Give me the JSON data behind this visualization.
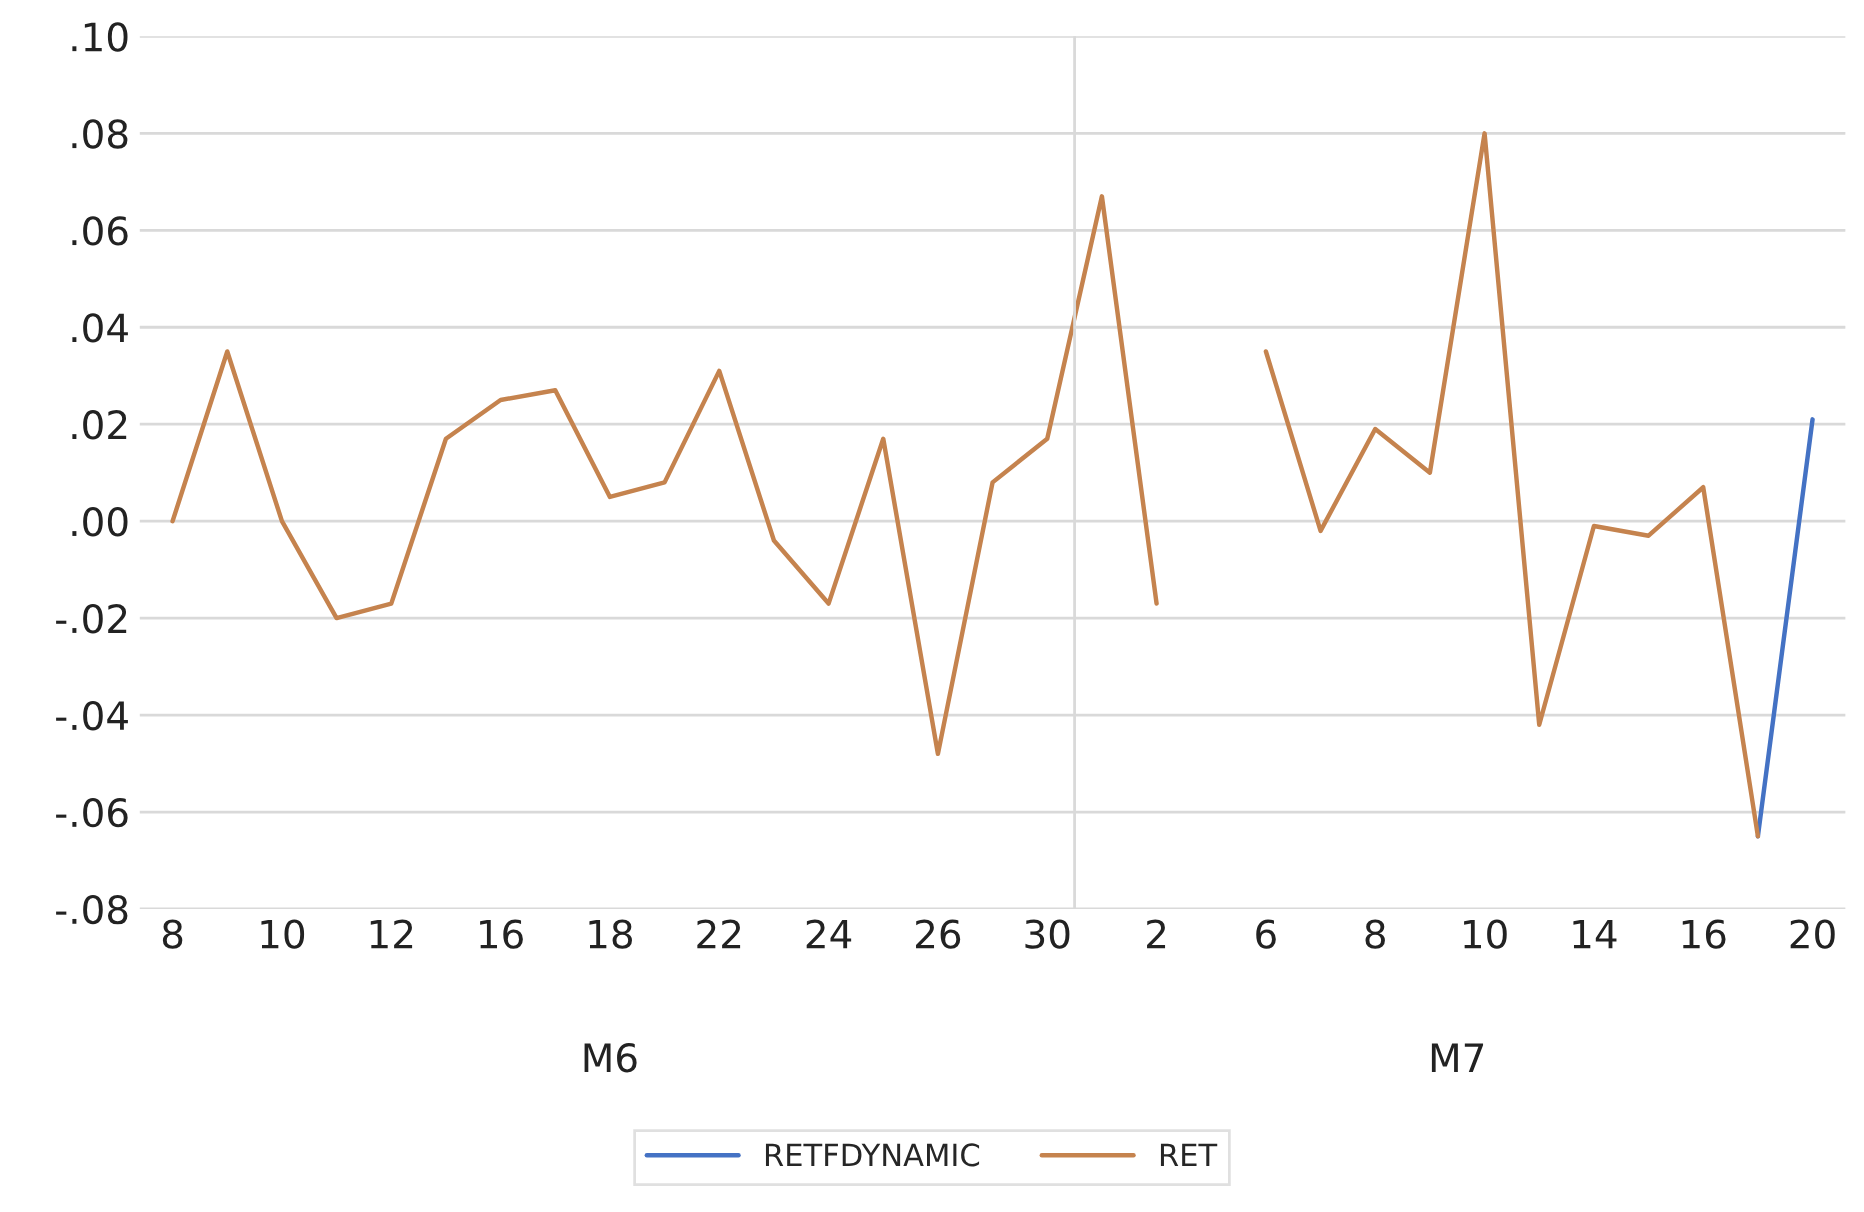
{
  "chart_data": {
    "type": "line",
    "categories": [
      "8",
      null,
      "10",
      null,
      "12",
      null,
      "16",
      null,
      "18",
      null,
      "22",
      null,
      "24",
      null,
      "26",
      null,
      "30",
      null,
      "2",
      null,
      "6",
      null,
      "8",
      null,
      "10",
      null,
      "14",
      null,
      "16",
      null,
      "20"
    ],
    "series": [
      {
        "name": "RETFDYNAMIC",
        "color": "#4472c4",
        "values": [
          null,
          null,
          null,
          null,
          null,
          null,
          null,
          null,
          null,
          null,
          null,
          null,
          null,
          null,
          null,
          null,
          null,
          null,
          null,
          null,
          null,
          null,
          null,
          null,
          null,
          null,
          null,
          null,
          null,
          -0.065,
          0.021
        ]
      },
      {
        "name": "RET",
        "color": "#c5834e",
        "values": [
          0.0,
          0.035,
          0.0,
          -0.02,
          -0.017,
          0.017,
          0.025,
          0.027,
          0.005,
          0.008,
          0.031,
          -0.004,
          -0.017,
          0.017,
          -0.048,
          0.008,
          0.017,
          0.067,
          -0.017,
          null,
          0.035,
          -0.002,
          0.019,
          0.01,
          0.08,
          -0.042,
          -0.001,
          -0.003,
          0.007,
          -0.065,
          null
        ]
      }
    ],
    "ylim": [
      -0.08,
      0.1
    ],
    "yticks": [
      {
        "value": -0.08,
        "label": "-.08"
      },
      {
        "value": -0.06,
        "label": "-.06"
      },
      {
        "value": -0.04,
        "label": "-.04"
      },
      {
        "value": -0.02,
        "label": "-.02"
      },
      {
        "value": 0.0,
        "label": ".00"
      },
      {
        "value": 0.02,
        "label": ".02"
      },
      {
        "value": 0.04,
        "label": ".04"
      },
      {
        "value": 0.06,
        "label": ".06"
      },
      {
        "value": 0.08,
        "label": ".08"
      },
      {
        "value": 0.1,
        "label": ".10"
      }
    ],
    "annotations": [
      "M6",
      "M7"
    ],
    "grid": "y",
    "legend": "bottom",
    "line_style": "solid",
    "marker": "none"
  }
}
